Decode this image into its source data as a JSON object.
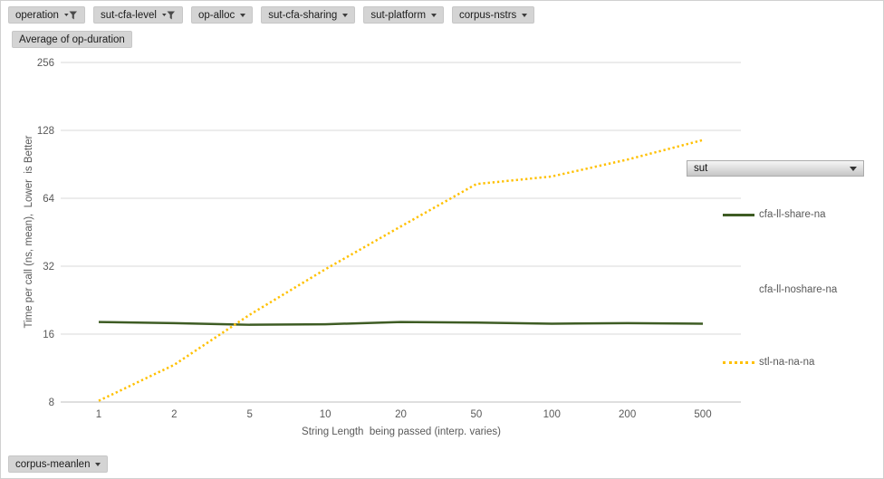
{
  "pivot_filters": [
    {
      "label": "operation",
      "icon": "filter-funnel-icon",
      "filtered": true
    },
    {
      "label": "sut-cfa-level",
      "icon": "filter-funnel-icon",
      "filtered": true
    },
    {
      "label": "op-alloc",
      "icon": "dropdown-arrow-icon",
      "filtered": false
    },
    {
      "label": "sut-cfa-sharing",
      "icon": "dropdown-arrow-icon",
      "filtered": false
    },
    {
      "label": "sut-platform",
      "icon": "dropdown-arrow-icon",
      "filtered": false
    },
    {
      "label": "corpus-nstrs",
      "icon": "dropdown-arrow-icon",
      "filtered": false
    }
  ],
  "value_button": {
    "label": "Average of op-duration"
  },
  "bottom_button": {
    "label": "corpus-meanlen"
  },
  "legend": {
    "field_button": {
      "label": "sut"
    },
    "items": [
      {
        "label": "cfa-ll-share-na",
        "swatch": "solid",
        "color": "#3e5c24"
      },
      {
        "label": "cfa-ll-noshare-na",
        "swatch": "none",
        "color": null
      },
      {
        "label": "stl-na-na-na",
        "swatch": "dotted",
        "color": "#ffc000"
      }
    ]
  },
  "chart_data": {
    "type": "line",
    "title": "",
    "xlabel": "String Length  being passed (interp. varies)",
    "ylabel": "Time per call (ns, mean),  Lower  is Better",
    "x_scale": "categorical",
    "y_scale": "log2",
    "categories": [
      1,
      2,
      5,
      10,
      20,
      50,
      100,
      200,
      500
    ],
    "y_ticks": [
      8,
      16,
      32,
      64,
      128,
      256
    ],
    "ylim": [
      8,
      256
    ],
    "grid": true,
    "legend_position": "right",
    "series": [
      {
        "name": "cfa-ll-share-na",
        "color": "#3e5c24",
        "style": "solid",
        "values": [
          18.1,
          17.9,
          17.6,
          17.7,
          18.1,
          18.0,
          17.8,
          17.9,
          17.8
        ]
      },
      {
        "name": "cfa-ll-noshare-na",
        "color": null,
        "style": "hidden",
        "values": [
          null,
          null,
          null,
          null,
          null,
          null,
          null,
          null,
          null
        ]
      },
      {
        "name": "stl-na-na-na",
        "color": "#ffc000",
        "style": "dotted",
        "values": [
          8.1,
          11.7,
          19.5,
          31,
          48,
          74,
          80,
          95,
          116
        ]
      }
    ]
  },
  "style_colors": {
    "gridline": "#d9d9d9",
    "axis_line": "#bfbfbf",
    "tick_label": "#595959",
    "button_bg": "#d4d4d4",
    "series_green": "#3e5c24",
    "series_gold": "#ffc000"
  }
}
